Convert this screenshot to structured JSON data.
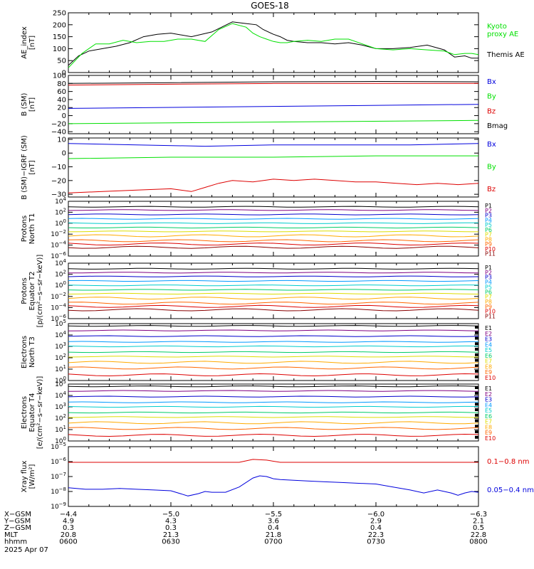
{
  "title": "GOES-18",
  "colors": {
    "black": "#000000",
    "green": "#00e000",
    "blue": "#0000dd",
    "red": "#dd0000",
    "P": [
      "#000000",
      "#800080",
      "#0000cc",
      "#0099ff",
      "#00cccc",
      "#00cc66",
      "#dddd00",
      "#ffaa00",
      "#ff6600",
      "#dd0000",
      "#880000"
    ],
    "E": [
      "#000000",
      "#800080",
      "#0000cc",
      "#0099ff",
      "#00cccc",
      "#00cc66",
      "#dddd00",
      "#ffaa00",
      "#ff6600",
      "#dd0000"
    ]
  },
  "chart_data": [
    {
      "type": "line",
      "ylabel": "AE_index\n[nT]",
      "ylim": [
        0,
        250
      ],
      "yticks": [
        {
          "v": 0,
          "t": "0"
        },
        {
          "v": 50,
          "t": "50"
        },
        {
          "v": 100,
          "t": "100"
        },
        {
          "v": 150,
          "t": "150"
        },
        {
          "v": 200,
          "t": "200"
        },
        {
          "v": 250,
          "t": "250"
        }
      ],
      "xlim": [
        0,
        120
      ],
      "series": [
        {
          "name": "Themis AE",
          "color": "black",
          "x": [
            0,
            3,
            6,
            10,
            14,
            18,
            22,
            26,
            30,
            36,
            42,
            48,
            52,
            55,
            57,
            60,
            62,
            64,
            66,
            70,
            74,
            78,
            82,
            86,
            90,
            95,
            100,
            105,
            110,
            113,
            116,
            118,
            120
          ],
          "y": [
            30,
            70,
            90,
            100,
            110,
            125,
            150,
            160,
            165,
            150,
            170,
            212,
            205,
            200,
            180,
            160,
            150,
            135,
            130,
            125,
            125,
            120,
            125,
            115,
            100,
            100,
            105,
            115,
            95,
            65,
            70,
            60,
            60
          ]
        },
        {
          "name": "Kyoto\nproxy AE",
          "color": "green",
          "x": [
            0,
            4,
            8,
            12,
            16,
            20,
            24,
            28,
            32,
            36,
            40,
            44,
            48,
            52,
            54,
            56,
            58,
            60,
            62,
            64,
            66,
            70,
            74,
            78,
            82,
            86,
            90,
            95,
            100,
            105,
            110,
            113,
            116,
            118,
            120
          ],
          "y": [
            20,
            80,
            120,
            120,
            135,
            125,
            130,
            130,
            140,
            140,
            130,
            180,
            205,
            190,
            165,
            150,
            140,
            130,
            125,
            125,
            130,
            135,
            130,
            140,
            140,
            120,
            100,
            95,
            100,
            95,
            90,
            75,
            80,
            80,
            75
          ]
        }
      ]
    },
    {
      "type": "line",
      "ylabel": "B (SM)\n[nT]",
      "ylim": [
        -45,
        100
      ],
      "yticks": [
        {
          "v": -40,
          "t": "−40"
        },
        {
          "v": -20,
          "t": "−20"
        },
        {
          "v": 0,
          "t": "0"
        },
        {
          "v": 20,
          "t": "20"
        },
        {
          "v": 40,
          "t": "40"
        },
        {
          "v": 60,
          "t": "60"
        },
        {
          "v": 80,
          "t": "80"
        },
        {
          "v": 100,
          "t": "100"
        }
      ],
      "xlim": [
        0,
        120
      ],
      "series": [
        {
          "name": "Bx",
          "color": "blue",
          "x": [
            0,
            120
          ],
          "y": [
            18,
            28
          ]
        },
        {
          "name": "By",
          "color": "green",
          "x": [
            0,
            120
          ],
          "y": [
            -20,
            -12
          ]
        },
        {
          "name": "Bz",
          "color": "red",
          "x": [
            0,
            30,
            60,
            90,
            120
          ],
          "y": [
            76,
            78,
            80,
            80,
            80
          ]
        },
        {
          "name": "Bmag",
          "color": "black",
          "x": [
            0,
            30,
            60,
            90,
            120
          ],
          "y": [
            80,
            82,
            84,
            85,
            84
          ]
        }
      ]
    },
    {
      "type": "line",
      "ylabel": "B (SM)−IGRF (SM)\n[nT]",
      "ylim": [
        -32,
        11
      ],
      "yticks": [
        {
          "v": -30,
          "t": "−30"
        },
        {
          "v": -20,
          "t": "−20"
        },
        {
          "v": -10,
          "t": "−10"
        },
        {
          "v": 0,
          "t": "0"
        },
        {
          "v": 10,
          "t": "10"
        }
      ],
      "xlim": [
        0,
        120
      ],
      "series": [
        {
          "name": "Bx",
          "color": "blue",
          "x": [
            0,
            20,
            40,
            60,
            80,
            100,
            120
          ],
          "y": [
            7,
            6,
            5,
            6,
            6,
            6,
            7
          ]
        },
        {
          "name": "By",
          "color": "green",
          "x": [
            0,
            30,
            60,
            90,
            120
          ],
          "y": [
            -4,
            -3,
            -3,
            -2,
            -2
          ]
        },
        {
          "name": "Bz",
          "color": "red",
          "x": [
            0,
            10,
            20,
            30,
            36,
            40,
            44,
            48,
            54,
            60,
            66,
            72,
            78,
            84,
            90,
            96,
            102,
            108,
            114,
            120
          ],
          "y": [
            -29,
            -28,
            -27,
            -26,
            -28,
            -25,
            -22,
            -20,
            -21,
            -19,
            -20,
            -19,
            -20,
            -21,
            -21,
            -22,
            -23,
            -22,
            -23,
            -22
          ]
        }
      ]
    },
    {
      "type": "line",
      "ylabel": "Protons\nNorth T1",
      "log": true,
      "ylim": [
        -6,
        4
      ],
      "yticks": [
        {
          "v": -6,
          "t": "10^-6"
        },
        {
          "v": -4,
          "t": "10^-4"
        },
        {
          "v": -2,
          "t": "10^-2"
        },
        {
          "v": 0,
          "t": "10^0"
        },
        {
          "v": 2,
          "t": "10^2"
        },
        {
          "v": 4,
          "t": "10^4"
        }
      ],
      "xlim": [
        0,
        120
      ],
      "channels": [
        "P1",
        "P2",
        "P3",
        "P4",
        "P5",
        "P6",
        "P7",
        "P8",
        "P9",
        "P10",
        "P11"
      ],
      "levels": [
        3.0,
        2.4,
        1.6,
        0.8,
        0.0,
        -0.8,
        -1.5,
        -2.3,
        -3.2,
        -3.8,
        -4.4
      ]
    },
    {
      "type": "line",
      "ylabel": "Protons\nEquator T2\n[p/(cm²−s−sr−keV)]",
      "log": true,
      "ylim": [
        -6,
        4
      ],
      "yticks": [
        {
          "v": -6,
          "t": "10^-6"
        },
        {
          "v": -4,
          "t": "10^-4"
        },
        {
          "v": -2,
          "t": "10^-2"
        },
        {
          "v": 0,
          "t": "10^0"
        },
        {
          "v": 2,
          "t": "10^2"
        },
        {
          "v": 4,
          "t": "10^4"
        }
      ],
      "xlim": [
        0,
        120
      ],
      "channels": [
        "P1",
        "P2",
        "P3",
        "P4",
        "P5",
        "P6",
        "P7",
        "P8",
        "P9",
        "P10",
        "P11"
      ],
      "levels": [
        3.0,
        2.3,
        1.6,
        0.8,
        0.0,
        -0.8,
        -1.5,
        -2.3,
        -3.2,
        -3.8,
        -4.4
      ]
    },
    {
      "type": "line",
      "ylabel": "Electrons\nNorth T3",
      "log": true,
      "ylim": [
        0,
        5
      ],
      "yticks": [
        {
          "v": 0,
          "t": "10^0"
        },
        {
          "v": 1,
          "t": "10^1"
        },
        {
          "v": 2,
          "t": "10^2"
        },
        {
          "v": 3,
          "t": "10^3"
        },
        {
          "v": 4,
          "t": "10^4"
        },
        {
          "v": 5,
          "t": "10^5"
        }
      ],
      "xlim": [
        0,
        120
      ],
      "channels": [
        "E1",
        "E2",
        "E3",
        "E4",
        "E5",
        "E6",
        "E7",
        "E8",
        "E9",
        "E10"
      ],
      "levels": [
        4.8,
        4.4,
        3.9,
        3.4,
        3.0,
        2.5,
        2.1,
        1.6,
        1.1,
        0.5
      ]
    },
    {
      "type": "line",
      "ylabel": "Electrons\nEquator T4\n[e/(cm²−s−sr−keV)]",
      "log": true,
      "ylim": [
        0,
        5
      ],
      "yticks": [
        {
          "v": 0,
          "t": "10^0"
        },
        {
          "v": 1,
          "t": "10^1"
        },
        {
          "v": 2,
          "t": "10^2"
        },
        {
          "v": 3,
          "t": "10^3"
        },
        {
          "v": 4,
          "t": "10^4"
        },
        {
          "v": 5,
          "t": "10^5"
        }
      ],
      "xlim": [
        0,
        120
      ],
      "channels": [
        "E1",
        "E2",
        "E3",
        "E4",
        "E5",
        "E6",
        "E7",
        "E8",
        "E9",
        "E10"
      ],
      "levels": [
        4.8,
        4.4,
        3.9,
        3.4,
        3.0,
        2.5,
        2.1,
        1.6,
        1.1,
        0.5
      ]
    },
    {
      "type": "line",
      "ylabel": "Xray flux\n[W/m²]",
      "log": true,
      "ylim": [
        -9,
        -5
      ],
      "yticks": [
        {
          "v": -9,
          "t": "10^-9"
        },
        {
          "v": -8,
          "t": "10^-8"
        },
        {
          "v": -7,
          "t": "10^-7"
        },
        {
          "v": -6,
          "t": "10^-6"
        },
        {
          "v": -5,
          "t": "10^-5"
        }
      ],
      "xlim": [
        0,
        120
      ],
      "series": [
        {
          "name": "0.1−0.8 nm",
          "color": "red",
          "x": [
            0,
            20,
            40,
            50,
            54,
            58,
            62,
            70,
            80,
            90,
            100,
            110,
            120
          ],
          "y": [
            -6.05,
            -6.05,
            -6.05,
            -6.05,
            -5.85,
            -5.9,
            -6.05,
            -6.05,
            -6.05,
            -6.05,
            -6.05,
            -6.05,
            -6.05
          ]
        },
        {
          "name": "0.05−0.4 nm",
          "color": "blue",
          "x": [
            0,
            5,
            10,
            15,
            20,
            25,
            30,
            35,
            38,
            40,
            42,
            46,
            50,
            54,
            56,
            58,
            60,
            62,
            66,
            70,
            75,
            80,
            85,
            90,
            95,
            100,
            104,
            108,
            110,
            112,
            114,
            116,
            118,
            120
          ],
          "y": [
            -7.75,
            -7.85,
            -7.85,
            -7.8,
            -7.85,
            -7.9,
            -7.95,
            -8.3,
            -8.15,
            -8.0,
            -8.05,
            -8.05,
            -7.7,
            -7.1,
            -6.95,
            -7.0,
            -7.15,
            -7.2,
            -7.25,
            -7.3,
            -7.35,
            -7.4,
            -7.45,
            -7.5,
            -7.7,
            -7.9,
            -8.1,
            -7.9,
            -8.0,
            -8.1,
            -8.25,
            -8.1,
            -8.0,
            -8.05
          ]
        }
      ]
    }
  ],
  "xaxis": {
    "rows": [
      {
        "label": "X−GSM",
        "values": [
          "−4.4",
          "−5.0",
          "−5.5",
          "−6.0",
          "−6.3"
        ]
      },
      {
        "label": "Y−GSM",
        "values": [
          "4.9",
          "4.3",
          "3.6",
          "2.9",
          "2.1"
        ]
      },
      {
        "label": "Z−GSM",
        "values": [
          "0.3",
          "0.3",
          "0.4",
          "0.4",
          "0.5"
        ]
      },
      {
        "label": "MLT",
        "values": [
          "20.8",
          "21.3",
          "21.8",
          "22.3",
          "22.8"
        ]
      },
      {
        "label": "hhmm",
        "values": [
          "0600",
          "0630",
          "0700",
          "0730",
          "0800"
        ]
      }
    ],
    "date": "2025 Apr 07"
  }
}
